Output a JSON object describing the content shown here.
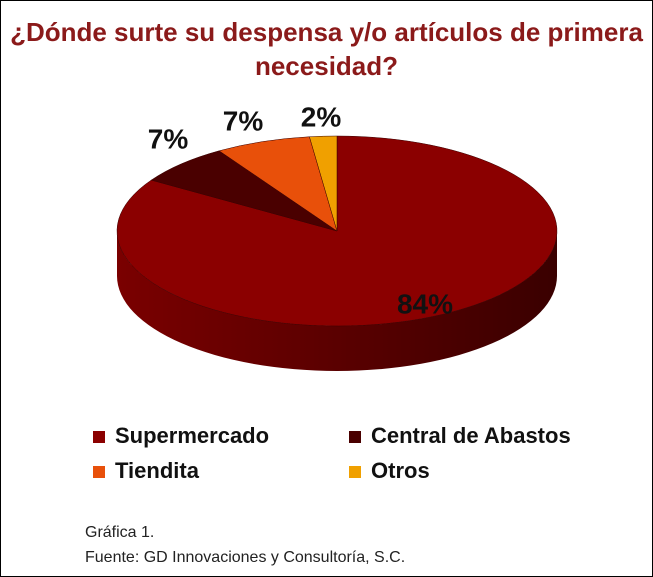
{
  "chart_data": {
    "type": "pie",
    "title": "¿Dónde surte su despensa y/o artículos de primera necesidad?",
    "categories": [
      "Supermercado",
      "Central de Abastos",
      "Tiendita",
      "Otros"
    ],
    "values": [
      84,
      7,
      7,
      2
    ],
    "value_labels": [
      "84%",
      "7%",
      "7%",
      "2%"
    ],
    "colors": [
      "#8b0000",
      "#4a0000",
      "#e8500a",
      "#f0a000"
    ],
    "legend": "bottom",
    "notes": [
      "Gráfica 1.",
      "Fuente: GD Innovaciones y Consultoría, S.C."
    ]
  }
}
